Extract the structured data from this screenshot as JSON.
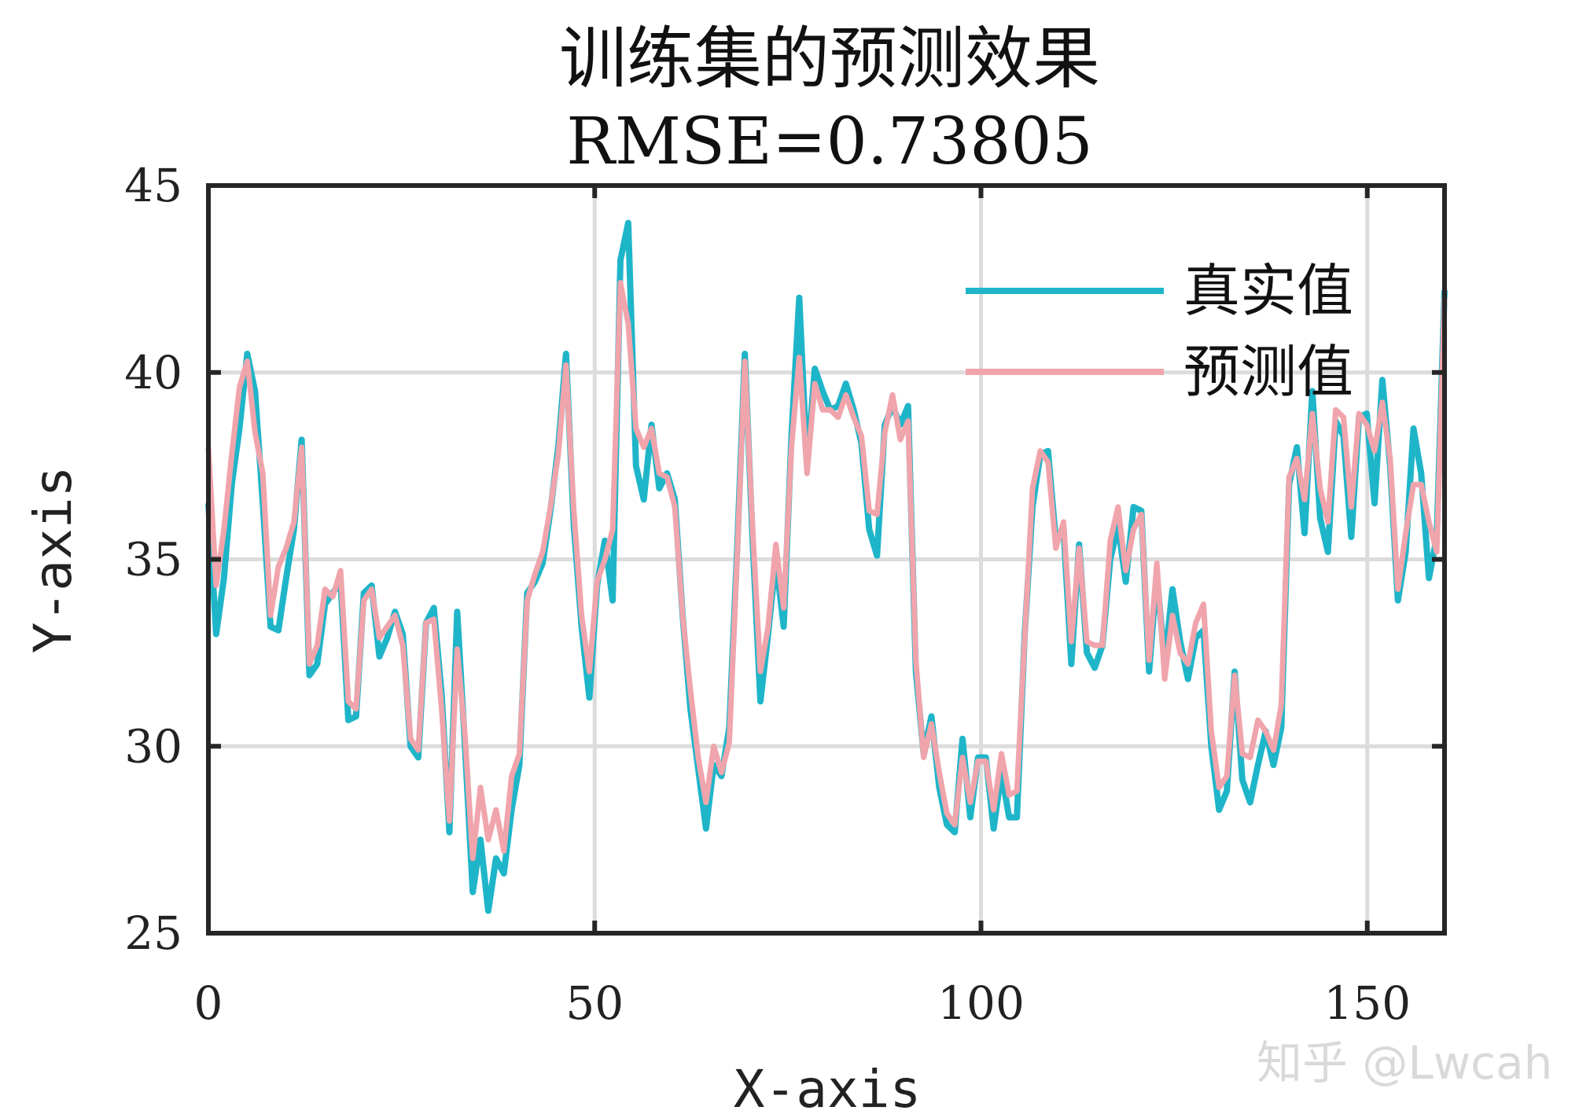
{
  "chart_data": {
    "type": "line",
    "title": "训练集的预测效果",
    "subtitle": "RMSE=0.73805",
    "xlabel": "X-axis",
    "ylabel": "Y-axis",
    "xlim": [
      0,
      160
    ],
    "ylim": [
      25,
      45
    ],
    "xticks": [
      0,
      50,
      100,
      150
    ],
    "yticks": [
      25,
      30,
      35,
      40,
      45
    ],
    "grid": true,
    "legend_position": "top-right",
    "series": [
      {
        "name": "真实值",
        "color": "#1fb5c9",
        "values": [
          36.5,
          33.0,
          34.5,
          37.0,
          38.5,
          40.5,
          39.5,
          36.5,
          33.2,
          33.1,
          34.5,
          35.8,
          38.2,
          31.9,
          32.2,
          33.8,
          34.1,
          34.4,
          30.7,
          30.8,
          34.1,
          34.3,
          32.4,
          32.9,
          33.6,
          33.0,
          30.0,
          29.7,
          33.3,
          33.7,
          31.4,
          27.7,
          33.6,
          30.0,
          26.1,
          27.5,
          25.6,
          27.0,
          26.6,
          28.3,
          29.5,
          34.1,
          34.4,
          34.9,
          36.3,
          38.0,
          40.5,
          35.9,
          33.2,
          31.3,
          34.3,
          35.5,
          33.9,
          43.0,
          44.0,
          37.5,
          36.6,
          38.6,
          36.9,
          37.3,
          36.6,
          33.5,
          31.0,
          29.4,
          27.8,
          29.5,
          29.2,
          30.5,
          35.2,
          40.5,
          35.5,
          31.2,
          33.0,
          35.0,
          33.2,
          38.3,
          42.0,
          37.5,
          40.1,
          39.5,
          39.0,
          39.1,
          39.7,
          39.0,
          38.1,
          35.8,
          35.1,
          38.6,
          39.1,
          38.6,
          39.1,
          32.0,
          29.8,
          30.8,
          28.9,
          27.9,
          27.7,
          30.2,
          28.1,
          29.7,
          29.7,
          27.8,
          29.3,
          28.1,
          28.1,
          33.0,
          36.4,
          37.8,
          37.9,
          35.5,
          35.8,
          32.2,
          35.4,
          32.5,
          32.1,
          32.7,
          35.0,
          35.9,
          34.4,
          36.4,
          36.3,
          32.0,
          34.6,
          32.2,
          34.2,
          32.8,
          31.8,
          32.9,
          33.1,
          30.0,
          28.3,
          28.8,
          32.0,
          29.1,
          28.5,
          29.5,
          30.4,
          29.5,
          30.5,
          37.0,
          38.0,
          35.7,
          39.5,
          36.1,
          35.2,
          38.7,
          38.3,
          35.6,
          38.8,
          38.9,
          36.5,
          39.8,
          37.5,
          33.9,
          35.2,
          38.5,
          37.3,
          34.5,
          35.6,
          42.2
        ]
      },
      {
        "name": "预测值",
        "color": "#f0a4ab",
        "values": [
          38.0,
          34.3,
          35.8,
          37.8,
          39.6,
          40.3,
          38.4,
          37.3,
          33.5,
          34.8,
          35.3,
          36.0,
          38.0,
          32.2,
          32.7,
          34.2,
          34.0,
          34.7,
          31.2,
          31.0,
          33.9,
          34.2,
          32.9,
          33.2,
          33.5,
          32.7,
          30.2,
          29.9,
          33.3,
          33.4,
          31.0,
          28.0,
          32.6,
          30.3,
          27.0,
          28.9,
          27.5,
          28.3,
          27.2,
          29.2,
          29.8,
          33.9,
          34.6,
          35.2,
          36.4,
          37.8,
          40.2,
          36.3,
          33.5,
          32.0,
          34.4,
          35.0,
          35.8,
          42.4,
          41.3,
          38.5,
          38.0,
          38.5,
          37.3,
          37.2,
          36.4,
          33.5,
          31.5,
          29.7,
          28.5,
          30.0,
          29.3,
          30.1,
          35.0,
          40.3,
          35.8,
          32.0,
          33.2,
          35.4,
          33.7,
          38.0,
          40.4,
          37.3,
          39.7,
          39.0,
          39.0,
          38.8,
          39.4,
          38.8,
          38.3,
          36.3,
          36.2,
          38.4,
          39.4,
          38.2,
          38.7,
          32.3,
          29.7,
          30.6,
          29.3,
          28.2,
          27.9,
          29.7,
          28.5,
          29.6,
          29.6,
          28.3,
          29.8,
          28.7,
          28.8,
          32.9,
          36.9,
          37.9,
          37.6,
          35.3,
          36.0,
          32.8,
          35.3,
          32.8,
          32.7,
          32.7,
          35.5,
          36.4,
          34.7,
          35.8,
          36.2,
          32.3,
          34.9,
          31.8,
          33.5,
          32.5,
          32.2,
          33.3,
          33.8,
          30.4,
          28.9,
          29.2,
          31.9,
          29.8,
          29.7,
          30.7,
          30.4,
          29.9,
          31.1,
          37.2,
          37.7,
          36.6,
          38.9,
          36.9,
          36.0,
          39.0,
          38.8,
          36.4,
          38.9,
          38.6,
          37.9,
          39.2,
          37.7,
          34.2,
          35.7,
          37.0,
          37.0,
          36.0,
          35.2,
          42.0
        ]
      }
    ]
  },
  "watermark": "知乎 @Lwcah"
}
